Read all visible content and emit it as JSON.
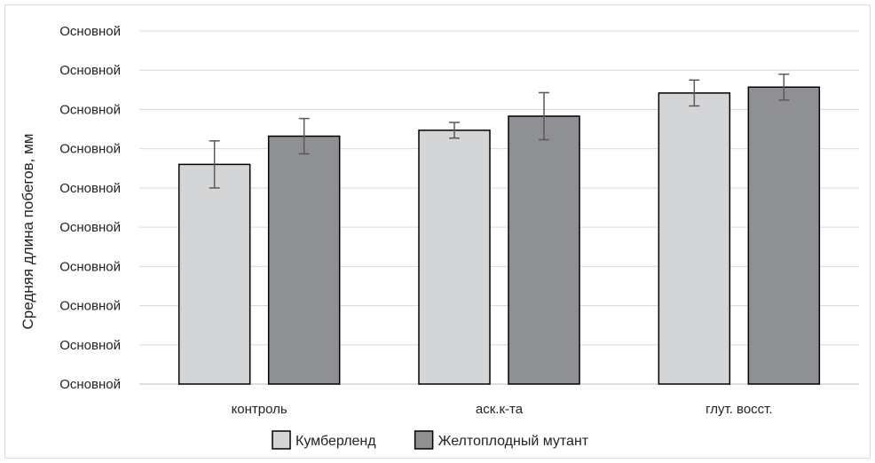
{
  "chart_data": {
    "type": "bar",
    "title": "",
    "xlabel": "",
    "ylabel": "Средняя длина побегов, мм",
    "y_tick_labels": [
      "Основной",
      "Основной",
      "Основной",
      "Основной",
      "Основной",
      "Основной",
      "Основной",
      "Основной",
      "Основной",
      "Основной"
    ],
    "ylim": [
      0,
      9
    ],
    "grid": true,
    "legend_position": "bottom",
    "categories": [
      "контроль",
      "аск.к-та",
      "глут. восст."
    ],
    "series": [
      {
        "name": "Кумберленд",
        "color": "#d4d5d7",
        "values": [
          5.6,
          6.47,
          7.42
        ],
        "errors": [
          0.6,
          0.2,
          0.33
        ]
      },
      {
        "name": "Желтоплодный мутант",
        "color": "#8f9094",
        "values": [
          6.32,
          6.83,
          7.57
        ],
        "errors": [
          0.45,
          0.6,
          0.33
        ]
      }
    ]
  }
}
